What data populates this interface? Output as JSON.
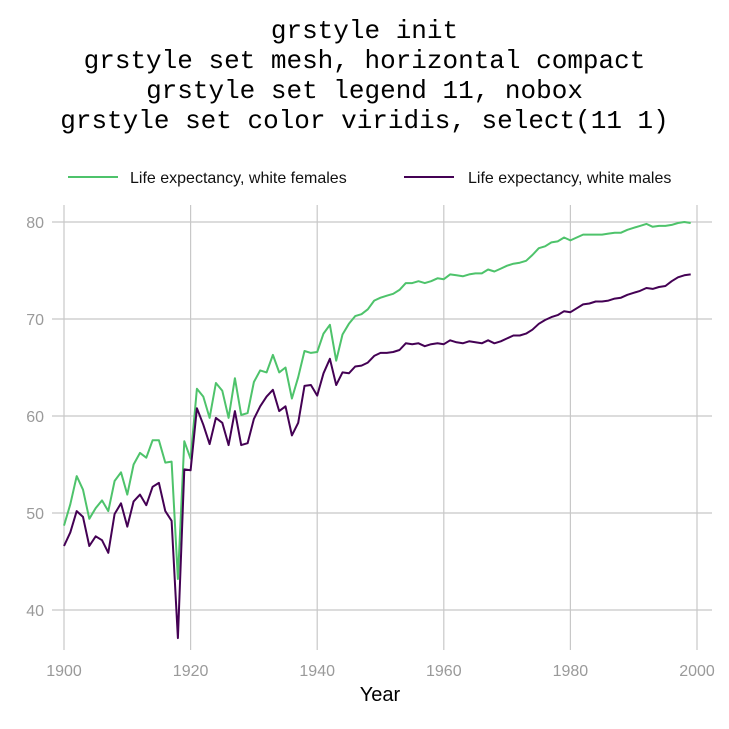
{
  "title_lines": [
    "grstyle init",
    "grstyle set mesh, horizontal compact",
    "grstyle set legend 11, nobox",
    "grstyle set color viridis, select(11 1)"
  ],
  "chart_data": {
    "type": "line",
    "xlabel": "Year",
    "ylabel": "",
    "xlim": [
      1900,
      2000
    ],
    "ylim": [
      35,
      81
    ],
    "xticks": [
      1900,
      1920,
      1940,
      1960,
      1980,
      2000
    ],
    "yticks": [
      40,
      50,
      60,
      70,
      80
    ],
    "grid": "both",
    "legend_position": "top",
    "x": [
      1900,
      1901,
      1902,
      1903,
      1904,
      1905,
      1906,
      1907,
      1908,
      1909,
      1910,
      1911,
      1912,
      1913,
      1914,
      1915,
      1916,
      1917,
      1918,
      1919,
      1920,
      1921,
      1922,
      1923,
      1924,
      1925,
      1926,
      1927,
      1928,
      1929,
      1930,
      1931,
      1932,
      1933,
      1934,
      1935,
      1936,
      1937,
      1938,
      1939,
      1940,
      1941,
      1942,
      1943,
      1944,
      1945,
      1946,
      1947,
      1948,
      1949,
      1950,
      1951,
      1952,
      1953,
      1954,
      1955,
      1956,
      1957,
      1958,
      1959,
      1960,
      1961,
      1962,
      1963,
      1964,
      1965,
      1966,
      1967,
      1968,
      1969,
      1970,
      1971,
      1972,
      1973,
      1974,
      1975,
      1976,
      1977,
      1978,
      1979,
      1980,
      1981,
      1982,
      1983,
      1984,
      1985,
      1986,
      1987,
      1988,
      1989,
      1990,
      1991,
      1992,
      1993,
      1994,
      1995,
      1996,
      1997,
      1998,
      1999
    ],
    "series": [
      {
        "name": "Life expectancy, white females",
        "color": "#4ec36b",
        "values": [
          48.7,
          50.9,
          53.8,
          52.4,
          49.4,
          50.5,
          51.3,
          50.2,
          53.3,
          54.2,
          51.9,
          55.0,
          56.2,
          55.7,
          57.5,
          57.5,
          55.2,
          55.3,
          43.2,
          57.4,
          55.6,
          62.8,
          62.0,
          59.8,
          63.4,
          62.6,
          59.8,
          63.9,
          60.1,
          60.3,
          63.5,
          64.7,
          64.5,
          66.3,
          64.5,
          65.0,
          61.8,
          64.0,
          66.7,
          66.5,
          66.6,
          68.5,
          69.4,
          65.7,
          68.4,
          69.5,
          70.3,
          70.5,
          71.0,
          71.9,
          72.2,
          72.4,
          72.6,
          73.0,
          73.7,
          73.7,
          73.9,
          73.7,
          73.9,
          74.2,
          74.1,
          74.6,
          74.5,
          74.4,
          74.6,
          74.7,
          74.7,
          75.1,
          74.9,
          75.2,
          75.5,
          75.7,
          75.8,
          76.0,
          76.6,
          77.3,
          77.5,
          77.9,
          78.0,
          78.4,
          78.1,
          78.4,
          78.7,
          78.7,
          78.7,
          78.7,
          78.8,
          78.9,
          78.9,
          79.2,
          79.4,
          79.6,
          79.8,
          79.5,
          79.6,
          79.6,
          79.7,
          79.9,
          80.0,
          79.9
        ]
      },
      {
        "name": "Life expectancy, white males",
        "color": "#440154",
        "values": [
          46.6,
          48.0,
          50.2,
          49.6,
          46.6,
          47.6,
          47.2,
          45.9,
          49.9,
          51.0,
          48.6,
          51.2,
          51.9,
          50.8,
          52.7,
          53.1,
          50.2,
          49.2,
          37.1,
          54.5,
          54.4,
          60.8,
          59.1,
          57.1,
          59.8,
          59.3,
          57.0,
          60.5,
          57.0,
          57.2,
          59.7,
          61.0,
          62.0,
          62.7,
          60.5,
          61.0,
          58.0,
          59.3,
          63.1,
          63.2,
          62.1,
          64.4,
          65.9,
          63.2,
          64.5,
          64.4,
          65.1,
          65.2,
          65.5,
          66.2,
          66.5,
          66.5,
          66.6,
          66.8,
          67.5,
          67.4,
          67.5,
          67.2,
          67.4,
          67.5,
          67.4,
          67.8,
          67.6,
          67.5,
          67.7,
          67.6,
          67.5,
          67.8,
          67.5,
          67.7,
          68.0,
          68.3,
          68.3,
          68.5,
          68.9,
          69.5,
          69.9,
          70.2,
          70.4,
          70.8,
          70.7,
          71.1,
          71.5,
          71.6,
          71.8,
          71.8,
          71.9,
          72.1,
          72.2,
          72.5,
          72.7,
          72.9,
          73.2,
          73.1,
          73.3,
          73.4,
          73.9,
          74.3,
          74.5,
          74.6
        ]
      }
    ]
  }
}
